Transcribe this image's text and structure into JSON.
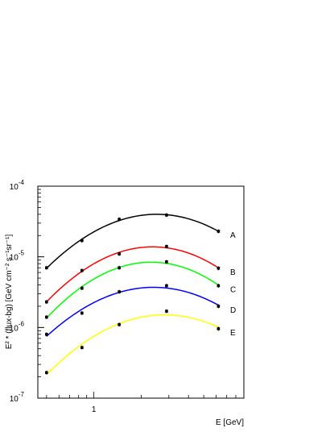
{
  "chart_data": {
    "type": "line",
    "title": "",
    "xlabel": "E [GeV]",
    "ylabel": "E² * (flux-bg) [GeV cm⁻² s⁻¹sr⁻¹]",
    "xscale": "log",
    "yscale": "log",
    "xlim": [
      0.44,
      9.0
    ],
    "ylim": [
      1e-07,
      0.0001
    ],
    "x_ticks": [
      {
        "value": 1,
        "label": "1"
      }
    ],
    "y_ticks": [
      {
        "value": 0.0001,
        "base": "10",
        "exp": "-4"
      },
      {
        "value": 1e-05,
        "base": "10",
        "exp": "-5"
      },
      {
        "value": 1e-06,
        "base": "10",
        "exp": "-6"
      },
      {
        "value": 1e-07,
        "base": "10",
        "exp": "-7"
      }
    ],
    "grid": false,
    "x": [
      0.5,
      0.84,
      1.45,
      2.9,
      6.2
    ],
    "series": [
      {
        "name": "A",
        "color": "#000000",
        "values": [
          7e-06,
          1.7e-05,
          3.4e-05,
          3.9e-05,
          2.3e-05
        ]
      },
      {
        "name": "B",
        "color": "#ff0000",
        "values": [
          2.3e-06,
          6.4e-06,
          1.1e-05,
          1.4e-05,
          6.9e-06
        ]
      },
      {
        "name": "C",
        "color": "#00ff00",
        "values": [
          1.4e-06,
          3.6e-06,
          7e-06,
          8.5e-06,
          3.9e-06
        ]
      },
      {
        "name": "D",
        "color": "#0000ff",
        "values": [
          8e-07,
          1.6e-06,
          3.2e-06,
          3.9e-06,
          2e-06
        ]
      },
      {
        "name": "E",
        "color": "#ffff00",
        "values": [
          2.3e-07,
          5.2e-07,
          1.1e-06,
          1.7e-06,
          9.6e-07
        ]
      }
    ]
  }
}
